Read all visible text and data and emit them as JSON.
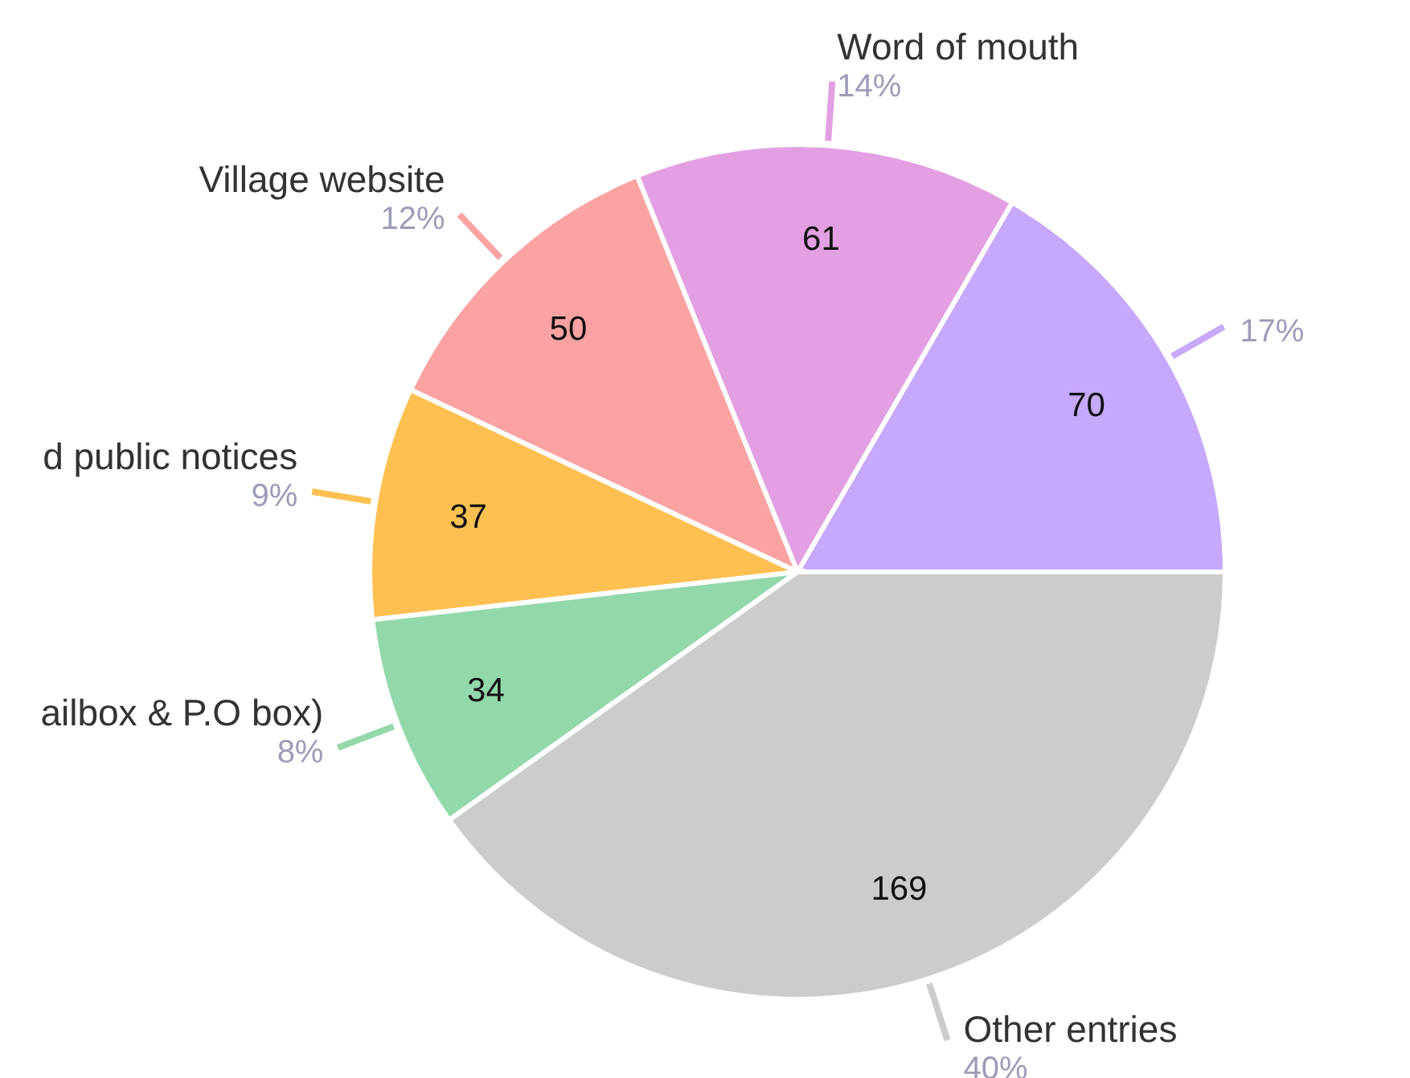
{
  "chart_data": {
    "type": "pie",
    "categories": [
      null,
      "Word of mouth",
      "Village website",
      "d public notices",
      "ailbox & P.O box)",
      "Other entries"
    ],
    "values": [
      70,
      61,
      50,
      37,
      34,
      169
    ],
    "colors": [
      "#c6a8fc",
      "#e2a0e3",
      "#fba3a3",
      "#ffc052",
      "#92d8ab",
      "#cccccc"
    ],
    "data_labels": true,
    "annotations": [
      "17%",
      "14%",
      "12%",
      "9%",
      "8%",
      "40%"
    ]
  }
}
